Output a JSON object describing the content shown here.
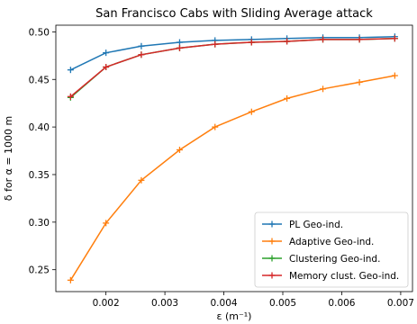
{
  "chart_data": {
    "type": "line",
    "title": "San Francisco Cabs with Sliding Average attack",
    "xlabel": "ε (m⁻¹)",
    "ylabel": "δ for α = 1000 m",
    "xlim": [
      0.00115,
      0.0072
    ],
    "ylim": [
      0.227,
      0.507
    ],
    "x_ticks": [
      0.002,
      0.003,
      0.004,
      0.005,
      0.006,
      0.007
    ],
    "x_tick_labels": [
      "0.002",
      "0.003",
      "0.004",
      "0.005",
      "0.006",
      "0.007"
    ],
    "y_ticks": [
      0.25,
      0.3,
      0.35,
      0.4,
      0.45,
      0.5
    ],
    "y_tick_labels": [
      "0.25",
      "0.30",
      "0.35",
      "0.40",
      "0.45",
      "0.50"
    ],
    "x": [
      0.0014,
      0.002,
      0.0026,
      0.00325,
      0.00385,
      0.00447,
      0.00507,
      0.00568,
      0.0063,
      0.0069
    ],
    "series": [
      {
        "name": "PL Geo-ind.",
        "color": "#1f77b4",
        "values": [
          0.46,
          0.478,
          0.485,
          0.489,
          0.491,
          0.492,
          0.493,
          0.494,
          0.494,
          0.495
        ]
      },
      {
        "name": "Adaptive Geo-ind.",
        "color": "#ff7f0e",
        "values": [
          0.239,
          0.299,
          0.344,
          0.376,
          0.4,
          0.416,
          0.43,
          0.44,
          0.447,
          0.454
        ]
      },
      {
        "name": "Clustering Geo-ind.",
        "color": "#2ca02c",
        "values": [
          0.431,
          0.463,
          0.476,
          0.483,
          0.487,
          0.489,
          0.49,
          0.492,
          0.492,
          0.493
        ]
      },
      {
        "name": "Memory clust. Geo-ind.",
        "color": "#d62728",
        "values": [
          0.432,
          0.463,
          0.476,
          0.483,
          0.487,
          0.489,
          0.49,
          0.492,
          0.492,
          0.493
        ]
      }
    ],
    "grid": false,
    "legend_position": "lower-right"
  }
}
